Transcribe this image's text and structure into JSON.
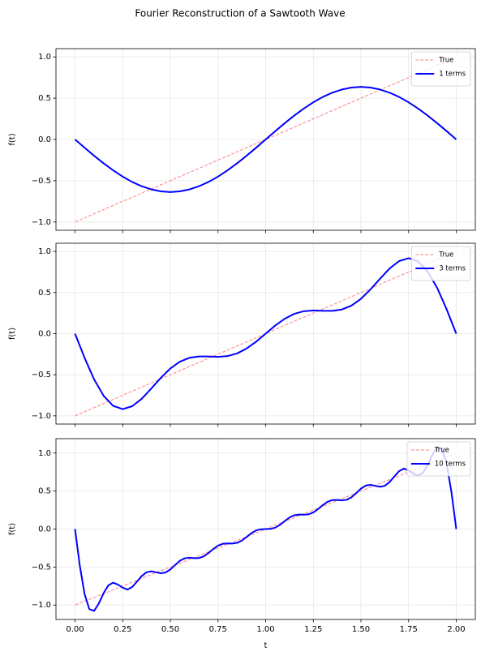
{
  "title": "Fourier Reconstruction of a Sawtooth Wave",
  "chart_data": [
    {
      "type": "line",
      "ylabel": "f(t)",
      "xlim": [
        -0.1,
        2.1
      ],
      "ylim": [
        -1.1,
        1.1
      ],
      "xticks": [
        0,
        0.25,
        0.5,
        0.75,
        1,
        1.25,
        1.5,
        1.75,
        2
      ],
      "yticks": [
        {
          "value": -1,
          "label": "−1.0"
        },
        {
          "value": -0.5,
          "label": "−0.5"
        },
        {
          "value": 0,
          "label": "0.0"
        },
        {
          "value": 0.5,
          "label": "0.5"
        },
        {
          "value": 1,
          "label": "1.0"
        }
      ],
      "grid": true,
      "legend": "upper right",
      "series": [
        {
          "name": "True",
          "color": "#ff8080",
          "style": "dashed",
          "x": [
            0,
            2
          ],
          "values": [
            -1,
            1
          ]
        },
        {
          "name": "1 terms",
          "color": "#0000ff",
          "style": "solid",
          "x": [
            0,
            0.05,
            0.1,
            0.15,
            0.2,
            0.25,
            0.3,
            0.35,
            0.4,
            0.45,
            0.5,
            0.55,
            0.6,
            0.65,
            0.7,
            0.75,
            0.8,
            0.85,
            0.9,
            0.95,
            1,
            1.05,
            1.1,
            1.15,
            1.2,
            1.25,
            1.3,
            1.35,
            1.4,
            1.45,
            1.5,
            1.55,
            1.6,
            1.65,
            1.7,
            1.75,
            1.8,
            1.85,
            1.9,
            1.95,
            2
          ],
          "values": [
            0,
            -0.1,
            -0.197,
            -0.289,
            -0.374,
            -0.45,
            -0.515,
            -0.567,
            -0.605,
            -0.629,
            -0.637,
            -0.629,
            -0.605,
            -0.567,
            -0.515,
            -0.45,
            -0.374,
            -0.289,
            -0.197,
            -0.1,
            0,
            0.1,
            0.197,
            0.289,
            0.374,
            0.45,
            0.515,
            0.567,
            0.605,
            0.629,
            0.637,
            0.629,
            0.605,
            0.567,
            0.515,
            0.45,
            0.374,
            0.289,
            0.197,
            0.1,
            0
          ]
        }
      ]
    },
    {
      "type": "line",
      "ylabel": "f(t)",
      "xlim": [
        -0.1,
        2.1
      ],
      "ylim": [
        -1.1,
        1.1
      ],
      "xticks": [
        0,
        0.25,
        0.5,
        0.75,
        1,
        1.25,
        1.5,
        1.75,
        2
      ],
      "yticks": [
        {
          "value": -1,
          "label": "−1.0"
        },
        {
          "value": -0.5,
          "label": "−0.5"
        },
        {
          "value": 0,
          "label": "0.0"
        },
        {
          "value": 0.5,
          "label": "0.5"
        },
        {
          "value": 1,
          "label": "1.0"
        }
      ],
      "grid": true,
      "legend": "upper right",
      "series": [
        {
          "name": "True",
          "color": "#ff8080",
          "style": "dashed",
          "x": [
            0,
            2
          ],
          "values": [
            -1,
            1
          ]
        },
        {
          "name": "3 terms",
          "color": "#0000ff",
          "style": "solid",
          "x": [
            0,
            0.05,
            0.1,
            0.15,
            0.2,
            0.25,
            0.3,
            0.35,
            0.4,
            0.45,
            0.5,
            0.55,
            0.6,
            0.65,
            0.7,
            0.75,
            0.8,
            0.85,
            0.9,
            0.95,
            1,
            1.05,
            1.1,
            1.15,
            1.2,
            1.25,
            1.3,
            1.35,
            1.4,
            1.45,
            1.5,
            1.55,
            1.6,
            1.65,
            1.7,
            1.75,
            1.8,
            1.85,
            1.9,
            1.95,
            2
          ],
          "values": [
            0,
            -0.294,
            -0.556,
            -0.756,
            -0.879,
            -0.918,
            -0.883,
            -0.792,
            -0.668,
            -0.538,
            -0.424,
            -0.341,
            -0.294,
            -0.277,
            -0.278,
            -0.282,
            -0.273,
            -0.241,
            -0.181,
            -0.098,
            0,
            0.098,
            0.181,
            0.241,
            0.273,
            0.282,
            0.278,
            0.277,
            0.294,
            0.341,
            0.424,
            0.538,
            0.668,
            0.792,
            0.883,
            0.918,
            0.879,
            0.756,
            0.556,
            0.294,
            0
          ]
        }
      ]
    },
    {
      "type": "line",
      "ylabel": "f(t)",
      "xlabel": "t",
      "xlim": [
        -0.1,
        2.1
      ],
      "ylim": [
        -1.19,
        1.19
      ],
      "xticks": [
        {
          "value": 0,
          "label": "0.00"
        },
        {
          "value": 0.25,
          "label": "0.25"
        },
        {
          "value": 0.5,
          "label": "0.50"
        },
        {
          "value": 0.75,
          "label": "0.75"
        },
        {
          "value": 1,
          "label": "1.00"
        },
        {
          "value": 1.25,
          "label": "1.25"
        },
        {
          "value": 1.5,
          "label": "1.50"
        },
        {
          "value": 1.75,
          "label": "1.75"
        },
        {
          "value": 2,
          "label": "2.00"
        }
      ],
      "yticks": [
        {
          "value": -1,
          "label": "−1.0"
        },
        {
          "value": -0.5,
          "label": "−0.5"
        },
        {
          "value": 0,
          "label": "0.0"
        },
        {
          "value": 0.5,
          "label": "0.5"
        },
        {
          "value": 1,
          "label": "1.0"
        }
      ],
      "grid": true,
      "legend": "upper right",
      "series": [
        {
          "name": "True",
          "color": "#ff8080",
          "style": "dashed",
          "x": [
            0,
            2
          ],
          "values": [
            -1,
            1
          ]
        },
        {
          "name": "10 terms",
          "color": "#0000ff",
          "style": "solid",
          "x": [
            0,
            0.025,
            0.05,
            0.075,
            0.1,
            0.125,
            0.15,
            0.175,
            0.2,
            0.225,
            0.25,
            0.275,
            0.3,
            0.325,
            0.35,
            0.375,
            0.4,
            0.425,
            0.45,
            0.475,
            0.5,
            0.525,
            0.55,
            0.575,
            0.6,
            0.625,
            0.65,
            0.675,
            0.7,
            0.725,
            0.75,
            0.775,
            0.8,
            0.825,
            0.85,
            0.875,
            0.9,
            0.925,
            0.95,
            0.975,
            1,
            1.025,
            1.05,
            1.075,
            1.1,
            1.125,
            1.15,
            1.175,
            1.2,
            1.225,
            1.25,
            1.275,
            1.3,
            1.325,
            1.35,
            1.375,
            1.4,
            1.425,
            1.45,
            1.475,
            1.5,
            1.525,
            1.55,
            1.575,
            1.6,
            1.625,
            1.65,
            1.675,
            1.7,
            1.725,
            1.75,
            1.775,
            1.8,
            1.825,
            1.85,
            1.875,
            1.9,
            1.925,
            1.95,
            1.975,
            2
          ],
          "values": [
            0,
            -0.481,
            -0.854,
            -1.054,
            -1.077,
            -0.979,
            -0.843,
            -0.74,
            -0.706,
            -0.73,
            -0.772,
            -0.796,
            -0.762,
            -0.692,
            -0.618,
            -0.569,
            -0.556,
            -0.569,
            -0.582,
            -0.572,
            -0.532,
            -0.473,
            -0.418,
            -0.385,
            -0.377,
            -0.383,
            -0.382,
            -0.36,
            -0.316,
            -0.263,
            -0.218,
            -0.194,
            -0.19,
            -0.191,
            -0.182,
            -0.152,
            -0.105,
            -0.055,
            -0.018,
            -0.002,
            0,
            0.002,
            0.018,
            0.055,
            0.105,
            0.152,
            0.182,
            0.191,
            0.19,
            0.194,
            0.218,
            0.263,
            0.316,
            0.36,
            0.382,
            0.383,
            0.377,
            0.385,
            0.418,
            0.473,
            0.532,
            0.572,
            0.582,
            0.569,
            0.556,
            0.569,
            0.618,
            0.692,
            0.762,
            0.796,
            0.772,
            0.73,
            0.706,
            0.74,
            0.843,
            0.979,
            1.077,
            1.054,
            0.854,
            0.481,
            0
          ]
        }
      ]
    }
  ]
}
